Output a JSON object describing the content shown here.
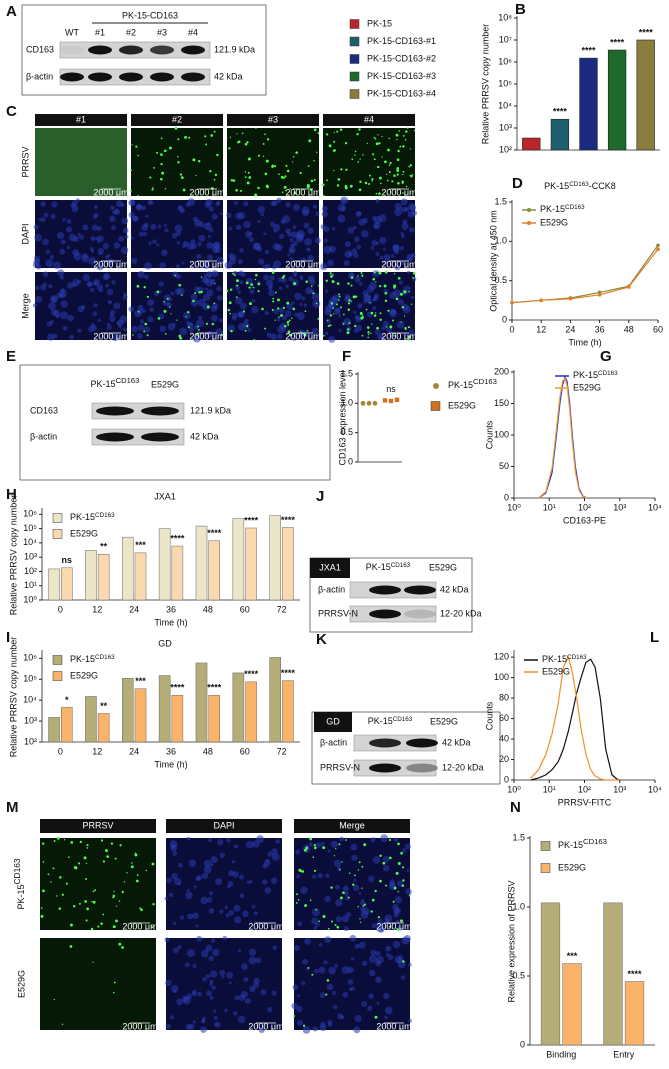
{
  "panel_a": {
    "label": "A",
    "group_label": "PK-15-CD163",
    "lanes": [
      "WT",
      "#1",
      "#2",
      "#3",
      "#4"
    ],
    "rows": [
      "CD163",
      "β-actin"
    ],
    "sizes": [
      "121.9 kDa",
      "42 kDa"
    ]
  },
  "panel_c": {
    "label": "C",
    "columns": [
      "#1",
      "#2",
      "#3",
      "#4"
    ],
    "rows": [
      "PRRSV",
      "DAPI",
      "Merge"
    ],
    "scale_bar": "2000 μm"
  },
  "panel_e": {
    "label": "E",
    "lanes": [
      "PK-15CD163",
      "E529G"
    ],
    "rows": [
      "CD163",
      "β-actin"
    ],
    "sizes": [
      "121.9 kDa",
      "42 kDa"
    ]
  },
  "panel_j": {
    "label": "J",
    "strain": "JXA1",
    "lanes": [
      "PK-15CD163",
      "E529G"
    ],
    "rows": [
      "β-actin",
      "PRRSV-N"
    ],
    "sizes": [
      "42 kDa",
      "12-20 kDa"
    ]
  },
  "panel_k": {
    "label": "K",
    "strain": "GD",
    "lanes": [
      "PK-15CD163",
      "E529G"
    ],
    "rows": [
      "β-actin",
      "PRRSV-N"
    ],
    "sizes": [
      "42 kDa",
      "12-20 kDa"
    ]
  },
  "panel_m": {
    "label": "M",
    "columns": [
      "PRRSV",
      "DAPI",
      "Merge"
    ],
    "rows": [
      "PK-15CD163",
      "E529G"
    ],
    "scale_bar": "2000 μm"
  },
  "chart_data": [
    {
      "panel": "B",
      "type": "bar",
      "ylabel": "Relative PRRSV copy number",
      "categories": [
        "PK-15",
        "PK-15-CD163-#1",
        "PK-15-CD163-#2",
        "PK-15-CD163-#3",
        "PK-15-CD163-#4"
      ],
      "colors": [
        "#b8262c",
        "#1f5f6b",
        "#1b2a7e",
        "#1d6a2c",
        "#8a7d3e"
      ],
      "values": [
        350,
        2500,
        1500000,
        3500000,
        10000000
      ],
      "annotations": [
        null,
        "****",
        "****",
        "****",
        "****"
      ],
      "ylog": true,
      "ylim": [
        100,
        100000000
      ],
      "yticks": [
        {
          "value": 100,
          "label": "10²"
        },
        {
          "value": 1000,
          "label": "10³"
        },
        {
          "value": 10000,
          "label": "10⁴"
        },
        {
          "value": 100000,
          "label": "10⁵"
        },
        {
          "value": 1000000,
          "label": "10⁶"
        },
        {
          "value": 10000000,
          "label": "10⁷"
        },
        {
          "value": 100000000,
          "label": "10⁸"
        }
      ],
      "legend": "left"
    },
    {
      "panel": "D",
      "type": "line",
      "title": "PK-15CD163-CCK8",
      "xlabel": "Time (h)",
      "ylabel": "Optical density at 450 nm",
      "x": [
        0,
        12,
        24,
        36,
        48,
        60
      ],
      "series": [
        {
          "name": "PK-15CD163",
          "color": "#8a8a3a",
          "values": [
            0.22,
            0.25,
            0.28,
            0.35,
            0.43,
            0.95
          ]
        },
        {
          "name": "E529G",
          "color": "#e0802a",
          "values": [
            0.22,
            0.25,
            0.27,
            0.32,
            0.42,
            0.9
          ]
        }
      ],
      "xlim": [
        0,
        60
      ],
      "xticks": [
        0,
        12,
        24,
        36,
        48,
        60
      ],
      "ylim": [
        0,
        1.5
      ],
      "yticks": [
        0,
        0.5,
        {
          "value": 1,
          "label": "1.0"
        },
        1.5
      ],
      "markers": true,
      "legend": "upper left"
    },
    {
      "panel": "F",
      "type": "strip",
      "ylabel": "CD163 expression level",
      "series": [
        {
          "name": "PK-15CD163",
          "color": "#a08a3a",
          "marker": "circle",
          "values": [
            1,
            1,
            1
          ]
        },
        {
          "name": "E529G",
          "color": "#d07020",
          "marker": "square",
          "values": [
            1.05,
            1.04,
            1.06
          ]
        }
      ],
      "annotations": [
        null,
        "ns"
      ],
      "ylim": [
        0,
        1.5
      ],
      "yticks": [
        0,
        0.5,
        {
          "value": 1,
          "label": "1.0"
        },
        1.5
      ],
      "legend": "right"
    },
    {
      "panel": "G",
      "type": "line",
      "xlabel": "CD163-PE",
      "ylabel": "Counts",
      "x": [
        5,
        8,
        12,
        16,
        20,
        24,
        28,
        32,
        38,
        45,
        55,
        70,
        90,
        120
      ],
      "series": [
        {
          "name": "PK-15CD163",
          "color": "#2030d0",
          "values": [
            0,
            8,
            40,
            100,
            150,
            180,
            192,
            185,
            150,
            100,
            50,
            15,
            3,
            0
          ]
        },
        {
          "name": "E529G",
          "color": "#f0a030",
          "values": [
            0,
            10,
            48,
            110,
            160,
            186,
            190,
            178,
            140,
            90,
            42,
            12,
            2,
            0
          ]
        }
      ],
      "xlog": true,
      "xlim": [
        1,
        10000
      ],
      "xticks": [
        {
          "value": 1,
          "label": "10⁰"
        },
        {
          "value": 10,
          "label": "10¹"
        },
        {
          "value": 100,
          "label": "10²"
        },
        {
          "value": 1000,
          "label": "10³"
        },
        {
          "value": 10000,
          "label": "10⁴"
        }
      ],
      "ylim": [
        0,
        200
      ],
      "yticks": [
        0,
        50,
        100,
        150,
        200
      ],
      "legend": "upper right"
    },
    {
      "panel": "H",
      "type": "bar",
      "title": "JXA1",
      "xlabel": "Time (h)",
      "ylabel": "Relative PRRSV copy number",
      "categories": [
        "0",
        "12",
        "24",
        "36",
        "48",
        "60",
        "72"
      ],
      "series": [
        {
          "name": "PK-15CD163",
          "color": "#ece6c8",
          "values": [
            150,
            3000,
            25000,
            100000,
            150000,
            500000,
            800000
          ]
        },
        {
          "name": "E529G",
          "color": "#fbd9b0",
          "values": [
            180,
            1600,
            2000,
            6000,
            14000,
            110000,
            120000
          ]
        }
      ],
      "annotations": [
        "ns",
        "**",
        "***",
        "****",
        "****",
        "****",
        "****"
      ],
      "ylog": true,
      "ylim": [
        1,
        2000000
      ],
      "yticks": [
        {
          "value": 1,
          "label": "10⁰"
        },
        {
          "value": 10,
          "label": "10¹"
        },
        {
          "value": 100,
          "label": "10²"
        },
        {
          "value": 1000,
          "label": "10³"
        },
        {
          "value": 10000,
          "label": "10⁴"
        },
        {
          "value": 100000,
          "label": "10⁵"
        },
        {
          "value": 1000000,
          "label": "10⁶"
        }
      ],
      "legend": "upper left"
    },
    {
      "panel": "I",
      "type": "bar",
      "title": "GD",
      "xlabel": "Time (h)",
      "ylabel": "Relative PRRSV copy number",
      "categories": [
        "0",
        "12",
        "24",
        "36",
        "48",
        "60",
        "72"
      ],
      "series": [
        {
          "name": "PK-15CD163",
          "color": "#b5ad78",
          "values": [
            1500,
            15000,
            110000,
            150000,
            600000,
            200000,
            1100000
          ]
        },
        {
          "name": "E529G",
          "color": "#f9b46a",
          "values": [
            4500,
            2300,
            35000,
            17000,
            17000,
            75000,
            85000
          ]
        }
      ],
      "annotations": [
        "*",
        "**",
        "***",
        "****",
        "****",
        "****",
        "****"
      ],
      "ylog": true,
      "ylim": [
        100,
        2000000
      ],
      "yticks": [
        {
          "value": 100,
          "label": "10²"
        },
        {
          "value": 1000,
          "label": "10³"
        },
        {
          "value": 10000,
          "label": "10⁴"
        },
        {
          "value": 100000,
          "label": "10⁵"
        },
        {
          "value": 1000000,
          "label": "10⁶"
        }
      ],
      "legend": "upper left"
    },
    {
      "panel": "L",
      "type": "line",
      "xlabel": "PRRSV-FITC",
      "ylabel": "Counts",
      "x": [
        3,
        5,
        8,
        12,
        18,
        25,
        35,
        45,
        60,
        80,
        110,
        150,
        200,
        280,
        400,
        600,
        900
      ],
      "series": [
        {
          "name": "PK-15CD163",
          "color": "#111111",
          "values": [
            0,
            2,
            5,
            10,
            18,
            30,
            48,
            65,
            85,
            100,
            115,
            118,
            110,
            80,
            30,
            5,
            0
          ]
        },
        {
          "name": "E529G",
          "color": "#f0902a",
          "values": [
            2,
            10,
            25,
            45,
            75,
            110,
            120,
            105,
            80,
            50,
            25,
            10,
            4,
            1,
            0,
            0,
            0
          ]
        }
      ],
      "xlog": true,
      "xlim": [
        1,
        10000
      ],
      "xticks": [
        {
          "value": 1,
          "label": "10⁰"
        },
        {
          "value": 10,
          "label": "10¹"
        },
        {
          "value": 100,
          "label": "10²"
        },
        {
          "value": 1000,
          "label": "10³"
        },
        {
          "value": 10000,
          "label": "10⁴"
        }
      ],
      "ylim": [
        0,
        125
      ],
      "yticks": [
        0,
        20,
        40,
        60,
        80,
        100,
        120
      ],
      "legend": "upper left"
    },
    {
      "panel": "N",
      "type": "bar",
      "ylabel": "Relative expression of PRRSV",
      "categories": [
        "Binding",
        "Entry"
      ],
      "series": [
        {
          "name": "PK-15CD163",
          "color": "#b5ad78",
          "values": [
            1.03,
            1.03
          ]
        },
        {
          "name": "E529G",
          "color": "#f9b46a",
          "values": [
            0.59,
            0.46
          ]
        }
      ],
      "annotations": [
        "***",
        "****"
      ],
      "ylim": [
        0,
        1.5
      ],
      "yticks": [
        0,
        0.5,
        {
          "value": 1,
          "label": "1.0"
        },
        1.5
      ],
      "legend": "upper left"
    }
  ]
}
